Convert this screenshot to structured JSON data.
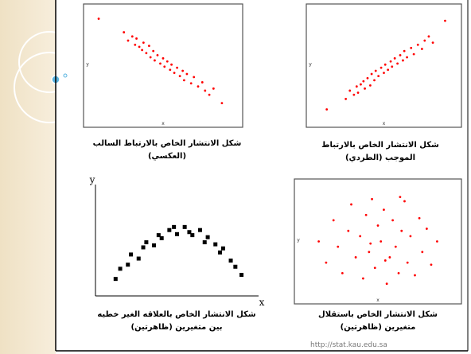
{
  "chart_data": [
    {
      "type": "scatter",
      "title": [
        "شكل الانتشار الخاص بالارتباط السالب",
        "(العكسي)"
      ],
      "x_label": "x",
      "y_label": "y",
      "color": "#ff0000",
      "marker": "circle",
      "frame": true,
      "xlim": [
        0,
        10
      ],
      "ylim": [
        0,
        10
      ],
      "x": [
        0.4,
        2.2,
        2.5,
        2.8,
        3,
        3.1,
        3.3,
        3.5,
        3.6,
        3.8,
        4,
        4.1,
        4.3,
        4.4,
        4.6,
        4.8,
        5,
        5.1,
        5.3,
        5.5,
        5.6,
        5.8,
        6,
        6.2,
        6.4,
        6.5,
        6.7,
        7,
        7.2,
        7.5,
        7.8,
        8,
        8.3,
        8.6,
        9.2
      ],
      "y": [
        9.5,
        8.2,
        7.4,
        7.8,
        7,
        7.6,
        6.8,
        6.5,
        7.2,
        6.2,
        6.9,
        5.8,
        6.4,
        5.5,
        6,
        5.2,
        5.7,
        4.9,
        5.4,
        4.6,
        5.1,
        4.3,
        4.8,
        4,
        4.5,
        3.6,
        4.2,
        3.3,
        3.9,
        3,
        3.4,
        2.6,
        2.2,
        2.8,
        1.4
      ]
    },
    {
      "type": "scatter",
      "title": [
        "شكل الانتشار الخاص بالارتباط",
        "الموجب (الطردي)"
      ],
      "x_label": "x",
      "y_label": "y",
      "color": "#ff0000",
      "marker": "circle",
      "frame": true,
      "xlim": [
        0,
        10
      ],
      "ylim": [
        0,
        10
      ],
      "x": [
        0.8,
        2.2,
        2.5,
        2.8,
        3,
        3.1,
        3.3,
        3.5,
        3.6,
        3.8,
        4,
        4.1,
        4.3,
        4.4,
        4.6,
        4.8,
        5,
        5.1,
        5.3,
        5.5,
        5.6,
        5.8,
        6,
        6.2,
        6.4,
        6.5,
        6.7,
        7,
        7.2,
        7.5,
        7.8,
        8,
        8.3,
        8.6,
        9.5
      ],
      "y": [
        0.8,
        1.8,
        2.6,
        2.2,
        3,
        2.4,
        3.2,
        3.5,
        2.8,
        3.8,
        3.1,
        4.2,
        3.6,
        4.5,
        4,
        4.8,
        4.3,
        5.1,
        4.6,
        5.4,
        4.9,
        5.7,
        5.2,
        6,
        5.5,
        6.4,
        5.8,
        6.7,
        6.1,
        7,
        6.6,
        7.4,
        7.8,
        7.2,
        9.3
      ]
    },
    {
      "type": "scatter",
      "title": [
        "شكل الانتشار الخاص بالعلاقه الغير خطيه",
        "بين  متغيرين (ظاهرتين)"
      ],
      "x_label": "x",
      "y_label": "y",
      "color": "#000000",
      "marker": "square",
      "frame": false,
      "xlim": [
        0,
        10
      ],
      "ylim": [
        0,
        10
      ],
      "x": [
        1,
        1.3,
        1.8,
        2,
        2.5,
        2.8,
        3,
        3.5,
        3.8,
        4,
        4.5,
        4.8,
        5,
        5.5,
        5.8,
        6,
        6.5,
        6.8,
        7,
        7.5,
        7.8,
        8,
        8.5,
        8.8,
        9.2
      ],
      "y": [
        1.2,
        2.2,
        2.6,
        3.6,
        3.2,
        4.3,
        4.8,
        4.5,
        5.5,
        5.2,
        6,
        6.3,
        5.6,
        6.3,
        5.8,
        5.5,
        6,
        4.8,
        5.3,
        4.6,
        3.8,
        4.2,
        3,
        2.4,
        1.6
      ]
    },
    {
      "type": "scatter",
      "title": [
        "شكل الانتشار الخاص باستقلال",
        "متغيرين (ظاهرتين)"
      ],
      "x_label": "x",
      "y_label": "y",
      "color": "#ff0000",
      "marker": "circle",
      "frame": true,
      "xlim": [
        0,
        10
      ],
      "ylim": [
        0,
        10
      ],
      "x": [
        1,
        1.5,
        2,
        2.3,
        2.6,
        3,
        3.2,
        3.5,
        3.8,
        4,
        4.2,
        4.4,
        4.6,
        4.8,
        5,
        5.2,
        5.4,
        5.6,
        5.8,
        6,
        6.2,
        6.4,
        6.6,
        6.8,
        7,
        7.2,
        7.5,
        7.8,
        8,
        8.3,
        8.6,
        9,
        4.5,
        5.5,
        6.5
      ],
      "y": [
        5,
        3,
        7,
        4.5,
        2,
        6,
        8.5,
        3.5,
        5.5,
        1.5,
        7.5,
        4,
        9,
        2.5,
        6.5,
        5,
        8,
        1,
        3.5,
        7,
        4.5,
        2,
        6,
        8.8,
        3,
        5.5,
        1.8,
        7.2,
        4,
        6.2,
        2.8,
        5,
        4.8,
        3.2,
        9.2
      ]
    }
  ],
  "footer": "http://stat.kau.edu.sa"
}
